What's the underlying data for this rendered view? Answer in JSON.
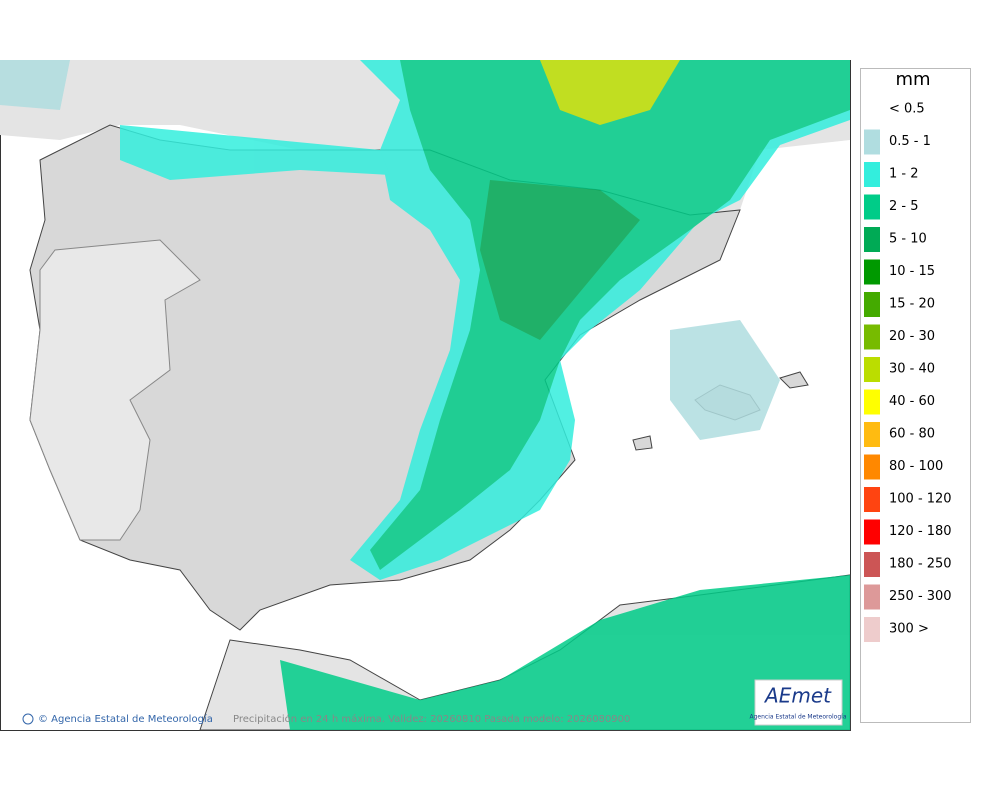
{
  "map": {
    "footer_credit": "© Agencia Estatal de Meteorología",
    "footer_caption": "Precipitación en 24 h máxima. Validez: 20260810 Pasada modelo: 2026080900",
    "logo": {
      "name": "AEmet",
      "subtitle": "Agencia Estatal de Meteorología"
    }
  },
  "legend": {
    "title": "mm",
    "items": [
      {
        "label": "< 0.5",
        "color": "#ffffff"
      },
      {
        "label": "0.5 - 1",
        "color": "#b0dde0"
      },
      {
        "label": "1 - 2",
        "color": "#33eedd"
      },
      {
        "label": "2 - 5",
        "color": "#00cc88"
      },
      {
        "label": "5 - 10",
        "color": "#00aa55"
      },
      {
        "label": "10 - 15",
        "color": "#009900"
      },
      {
        "label": "15 - 20",
        "color": "#44aa00"
      },
      {
        "label": "20 - 30",
        "color": "#77bb00"
      },
      {
        "label": "30 - 40",
        "color": "#bbdd00"
      },
      {
        "label": "40 - 60",
        "color": "#ffff00"
      },
      {
        "label": "60 - 80",
        "color": "#ffbb11"
      },
      {
        "label": "80 - 100",
        "color": "#ff8800"
      },
      {
        "label": "100 - 120",
        "color": "#ff4411"
      },
      {
        "label": "120 - 180",
        "color": "#ff0000"
      },
      {
        "label": "180 - 250",
        "color": "#cc5555"
      },
      {
        "label": "250 - 300",
        "color": "#dd9999"
      },
      {
        "label": "300 >",
        "color": "#eecccc"
      }
    ]
  }
}
